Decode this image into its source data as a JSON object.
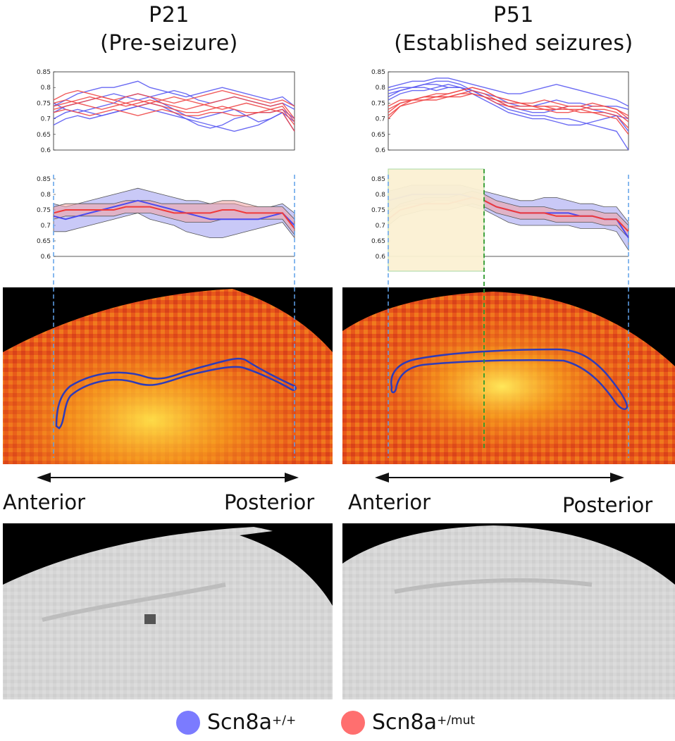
{
  "panels": {
    "left": {
      "title_line1": "P21",
      "title_line2": "(Pre-seizure)"
    },
    "right": {
      "title_line1": "P51",
      "title_line2": "(Established seizures)"
    }
  },
  "direction_labels": {
    "left": {
      "anterior": "Anterior",
      "posterior": "Posterior"
    },
    "right": {
      "anterior": "Anterior",
      "posterior": "Posterior"
    }
  },
  "legend": {
    "items": [
      {
        "name": "Scn8a",
        "sup": "+/+",
        "color": "#7b7bff"
      },
      {
        "name": "Scn8a",
        "sup": "+/mut",
        "color": "#ff6f6f"
      }
    ]
  },
  "colors": {
    "wt": "#4b4bf0",
    "mut": "#f03a3a",
    "wt_band": "#9c9cf0",
    "mut_band": "#f2a0a0",
    "highlight": "#fbf1d3",
    "guide": "#5fa0e8",
    "marker": "#2e9a2e"
  },
  "chart_data": [
    {
      "type": "line",
      "panel": "P21 individual",
      "ylim": [
        0.6,
        0.85
      ],
      "yticks": [
        "0.6",
        "0.65",
        "0.7",
        "0.75",
        "0.8",
        "0.85"
      ],
      "x": [
        0,
        1,
        2,
        3,
        4,
        5,
        6,
        7,
        8,
        9,
        10,
        11,
        12,
        13,
        14,
        15,
        16,
        17,
        18,
        19,
        20
      ],
      "series": [
        {
          "group": "wt",
          "values": [
            0.74,
            0.76,
            0.78,
            0.79,
            0.8,
            0.8,
            0.81,
            0.82,
            0.8,
            0.79,
            0.78,
            0.77,
            0.78,
            0.79,
            0.8,
            0.79,
            0.78,
            0.77,
            0.76,
            0.77,
            0.74
          ]
        },
        {
          "group": "wt",
          "values": [
            0.72,
            0.74,
            0.75,
            0.76,
            0.77,
            0.78,
            0.77,
            0.76,
            0.77,
            0.78,
            0.79,
            0.78,
            0.76,
            0.75,
            0.76,
            0.77,
            0.76,
            0.75,
            0.74,
            0.75,
            0.73
          ]
        },
        {
          "group": "wt",
          "values": [
            0.7,
            0.72,
            0.73,
            0.72,
            0.71,
            0.72,
            0.73,
            0.74,
            0.75,
            0.74,
            0.72,
            0.7,
            0.68,
            0.67,
            0.68,
            0.7,
            0.71,
            0.72,
            0.72,
            0.73,
            0.7
          ]
        },
        {
          "group": "wt",
          "values": [
            0.68,
            0.7,
            0.71,
            0.7,
            0.71,
            0.72,
            0.73,
            0.74,
            0.73,
            0.72,
            0.71,
            0.7,
            0.69,
            0.68,
            0.67,
            0.66,
            0.67,
            0.68,
            0.7,
            0.72,
            0.69
          ]
        },
        {
          "group": "wt",
          "values": [
            0.75,
            0.73,
            0.72,
            0.73,
            0.74,
            0.75,
            0.77,
            0.78,
            0.77,
            0.75,
            0.73,
            0.71,
            0.7,
            0.71,
            0.72,
            0.73,
            0.71,
            0.69,
            0.7,
            0.72,
            0.66
          ]
        },
        {
          "group": "mut",
          "values": [
            0.76,
            0.78,
            0.79,
            0.78,
            0.77,
            0.76,
            0.77,
            0.78,
            0.77,
            0.76,
            0.75,
            0.76,
            0.77,
            0.78,
            0.79,
            0.78,
            0.77,
            0.76,
            0.75,
            0.76,
            0.74
          ]
        },
        {
          "group": "mut",
          "values": [
            0.74,
            0.75,
            0.76,
            0.77,
            0.76,
            0.75,
            0.74,
            0.75,
            0.76,
            0.75,
            0.74,
            0.73,
            0.74,
            0.75,
            0.76,
            0.77,
            0.76,
            0.75,
            0.74,
            0.75,
            0.7
          ]
        },
        {
          "group": "mut",
          "values": [
            0.73,
            0.74,
            0.75,
            0.74,
            0.73,
            0.74,
            0.75,
            0.76,
            0.75,
            0.74,
            0.73,
            0.72,
            0.72,
            0.73,
            0.74,
            0.73,
            0.72,
            0.72,
            0.73,
            0.74,
            0.69
          ]
        },
        {
          "group": "mut",
          "values": [
            0.72,
            0.73,
            0.72,
            0.71,
            0.72,
            0.73,
            0.72,
            0.71,
            0.72,
            0.73,
            0.72,
            0.71,
            0.71,
            0.72,
            0.72,
            0.71,
            0.71,
            0.72,
            0.72,
            0.73,
            0.68
          ]
        },
        {
          "group": "mut",
          "values": [
            0.75,
            0.76,
            0.75,
            0.76,
            0.77,
            0.76,
            0.75,
            0.74,
            0.75,
            0.76,
            0.77,
            0.76,
            0.75,
            0.74,
            0.73,
            0.74,
            0.75,
            0.74,
            0.73,
            0.72,
            0.66
          ]
        }
      ]
    },
    {
      "type": "line",
      "panel": "P51 individual",
      "ylim": [
        0.6,
        0.85
      ],
      "yticks": [
        "0.6",
        "0.65",
        "0.7",
        "0.75",
        "0.8",
        "0.85"
      ],
      "x": [
        0,
        1,
        2,
        3,
        4,
        5,
        6,
        7,
        8,
        9,
        10,
        11,
        12,
        13,
        14,
        15,
        16,
        17,
        18,
        19,
        20
      ],
      "series": [
        {
          "group": "wt",
          "values": [
            0.8,
            0.81,
            0.82,
            0.82,
            0.83,
            0.83,
            0.82,
            0.81,
            0.8,
            0.79,
            0.78,
            0.78,
            0.79,
            0.8,
            0.81,
            0.8,
            0.79,
            0.78,
            0.77,
            0.76,
            0.74
          ]
        },
        {
          "group": "wt",
          "values": [
            0.79,
            0.8,
            0.8,
            0.81,
            0.81,
            0.8,
            0.8,
            0.79,
            0.78,
            0.77,
            0.75,
            0.74,
            0.74,
            0.75,
            0.76,
            0.75,
            0.75,
            0.74,
            0.74,
            0.74,
            0.73
          ]
        },
        {
          "group": "wt",
          "values": [
            0.78,
            0.79,
            0.8,
            0.8,
            0.79,
            0.8,
            0.8,
            0.79,
            0.77,
            0.76,
            0.74,
            0.73,
            0.72,
            0.72,
            0.73,
            0.74,
            0.74,
            0.73,
            0.72,
            0.71,
            0.7
          ]
        },
        {
          "group": "wt",
          "values": [
            0.76,
            0.78,
            0.79,
            0.79,
            0.8,
            0.81,
            0.8,
            0.78,
            0.76,
            0.74,
            0.72,
            0.71,
            0.7,
            0.7,
            0.69,
            0.68,
            0.68,
            0.69,
            0.7,
            0.71,
            0.66
          ]
        },
        {
          "group": "wt",
          "values": [
            0.77,
            0.79,
            0.8,
            0.81,
            0.82,
            0.82,
            0.81,
            0.79,
            0.77,
            0.75,
            0.73,
            0.72,
            0.71,
            0.71,
            0.7,
            0.7,
            0.69,
            0.68,
            0.67,
            0.66,
            0.6
          ]
        },
        {
          "group": "mut",
          "values": [
            0.7,
            0.74,
            0.76,
            0.77,
            0.77,
            0.78,
            0.79,
            0.8,
            0.79,
            0.77,
            0.76,
            0.75,
            0.75,
            0.76,
            0.75,
            0.74,
            0.74,
            0.75,
            0.74,
            0.73,
            0.71
          ]
        },
        {
          "group": "mut",
          "values": [
            0.72,
            0.75,
            0.76,
            0.76,
            0.77,
            0.77,
            0.78,
            0.79,
            0.78,
            0.76,
            0.75,
            0.75,
            0.74,
            0.74,
            0.74,
            0.73,
            0.73,
            0.74,
            0.74,
            0.73,
            0.7
          ]
        },
        {
          "group": "mut",
          "values": [
            0.73,
            0.75,
            0.76,
            0.77,
            0.77,
            0.77,
            0.78,
            0.78,
            0.77,
            0.76,
            0.74,
            0.74,
            0.74,
            0.73,
            0.73,
            0.74,
            0.74,
            0.73,
            0.73,
            0.72,
            0.69
          ]
        },
        {
          "group": "mut",
          "values": [
            0.71,
            0.74,
            0.75,
            0.76,
            0.76,
            0.77,
            0.77,
            0.78,
            0.77,
            0.75,
            0.74,
            0.73,
            0.73,
            0.73,
            0.72,
            0.72,
            0.73,
            0.72,
            0.72,
            0.71,
            0.67
          ]
        },
        {
          "group": "mut",
          "values": [
            0.74,
            0.76,
            0.76,
            0.77,
            0.78,
            0.78,
            0.79,
            0.8,
            0.79,
            0.77,
            0.76,
            0.75,
            0.74,
            0.74,
            0.73,
            0.73,
            0.72,
            0.72,
            0.71,
            0.7,
            0.65
          ]
        }
      ]
    },
    {
      "type": "area",
      "panel": "P21 mean",
      "ylim": [
        0.6,
        0.85
      ],
      "yticks": [
        "0.6",
        "0.65",
        "0.7",
        "0.75",
        "0.8",
        "0.85"
      ],
      "x": [
        0,
        1,
        2,
        3,
        4,
        5,
        6,
        7,
        8,
        9,
        10,
        11,
        12,
        13,
        14,
        15,
        16,
        17,
        18,
        19,
        20
      ],
      "series": [
        {
          "group": "wt",
          "mean": [
            0.73,
            0.72,
            0.73,
            0.74,
            0.75,
            0.76,
            0.77,
            0.78,
            0.77,
            0.76,
            0.75,
            0.74,
            0.73,
            0.72,
            0.72,
            0.72,
            0.72,
            0.72,
            0.73,
            0.74,
            0.7
          ],
          "lower": [
            0.68,
            0.68,
            0.69,
            0.7,
            0.71,
            0.72,
            0.73,
            0.74,
            0.72,
            0.71,
            0.7,
            0.68,
            0.67,
            0.66,
            0.66,
            0.67,
            0.68,
            0.69,
            0.7,
            0.71,
            0.66
          ],
          "upper": [
            0.77,
            0.76,
            0.77,
            0.78,
            0.79,
            0.8,
            0.81,
            0.82,
            0.81,
            0.8,
            0.79,
            0.78,
            0.78,
            0.77,
            0.77,
            0.77,
            0.76,
            0.76,
            0.76,
            0.77,
            0.74
          ]
        },
        {
          "group": "mut",
          "mean": [
            0.74,
            0.75,
            0.75,
            0.75,
            0.75,
            0.75,
            0.76,
            0.76,
            0.76,
            0.75,
            0.74,
            0.74,
            0.74,
            0.74,
            0.75,
            0.75,
            0.74,
            0.74,
            0.74,
            0.74,
            0.69
          ],
          "lower": [
            0.72,
            0.73,
            0.73,
            0.73,
            0.73,
            0.73,
            0.74,
            0.74,
            0.74,
            0.73,
            0.72,
            0.71,
            0.71,
            0.71,
            0.72,
            0.72,
            0.72,
            0.72,
            0.72,
            0.72,
            0.67
          ],
          "upper": [
            0.76,
            0.77,
            0.77,
            0.77,
            0.77,
            0.77,
            0.78,
            0.78,
            0.78,
            0.77,
            0.77,
            0.77,
            0.77,
            0.77,
            0.78,
            0.78,
            0.77,
            0.76,
            0.76,
            0.76,
            0.72
          ]
        }
      ]
    },
    {
      "type": "area",
      "panel": "P51 mean",
      "ylim": [
        0.6,
        0.85
      ],
      "yticks": [
        "0.6",
        "0.65",
        "0.7",
        "0.75",
        "0.8",
        "0.85"
      ],
      "x": [
        0,
        1,
        2,
        3,
        4,
        5,
        6,
        7,
        8,
        9,
        10,
        11,
        12,
        13,
        14,
        15,
        16,
        17,
        18,
        19,
        20
      ],
      "series": [
        {
          "group": "wt",
          "mean": [
            0.78,
            0.79,
            0.8,
            0.8,
            0.8,
            0.8,
            0.8,
            0.79,
            0.78,
            0.76,
            0.75,
            0.74,
            0.74,
            0.74,
            0.74,
            0.74,
            0.73,
            0.73,
            0.72,
            0.72,
            0.66
          ],
          "lower": [
            0.75,
            0.76,
            0.77,
            0.77,
            0.78,
            0.78,
            0.77,
            0.76,
            0.75,
            0.73,
            0.71,
            0.7,
            0.7,
            0.7,
            0.7,
            0.7,
            0.69,
            0.69,
            0.69,
            0.68,
            0.62
          ],
          "upper": [
            0.81,
            0.82,
            0.83,
            0.83,
            0.83,
            0.83,
            0.83,
            0.82,
            0.81,
            0.8,
            0.79,
            0.78,
            0.78,
            0.79,
            0.79,
            0.78,
            0.77,
            0.77,
            0.76,
            0.76,
            0.71
          ]
        },
        {
          "group": "mut",
          "mean": [
            0.72,
            0.75,
            0.76,
            0.77,
            0.77,
            0.77,
            0.78,
            0.79,
            0.78,
            0.76,
            0.75,
            0.74,
            0.74,
            0.74,
            0.73,
            0.73,
            0.73,
            0.73,
            0.72,
            0.72,
            0.68
          ],
          "lower": [
            0.7,
            0.73,
            0.74,
            0.75,
            0.75,
            0.75,
            0.76,
            0.77,
            0.76,
            0.74,
            0.73,
            0.72,
            0.72,
            0.72,
            0.71,
            0.71,
            0.71,
            0.71,
            0.7,
            0.7,
            0.66
          ],
          "upper": [
            0.74,
            0.77,
            0.78,
            0.79,
            0.79,
            0.79,
            0.8,
            0.81,
            0.8,
            0.78,
            0.77,
            0.76,
            0.76,
            0.76,
            0.75,
            0.75,
            0.75,
            0.75,
            0.74,
            0.74,
            0.7
          ]
        }
      ]
    }
  ]
}
